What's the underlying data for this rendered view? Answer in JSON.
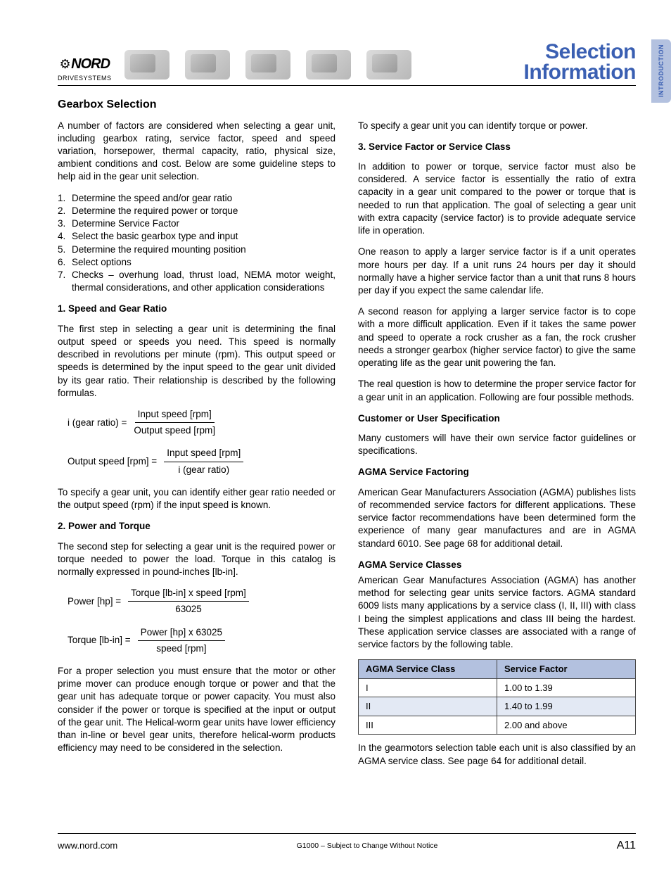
{
  "brand": {
    "name": "NORD",
    "sub": "DRIVESYSTEMS"
  },
  "title": {
    "line1": "Selection",
    "line2": "Information"
  },
  "sideTab": "INTRODUCTION",
  "section": "Gearbox Selection",
  "intro": "A number of factors are considered when selecting a gear unit, including gearbox rating, service factor, speed and speed variation, horsepower, thermal capacity, ratio, physical size, ambient conditions and cost.  Below are some guideline steps to help aid in the gear unit selection.",
  "steps": [
    "Determine the speed and/or gear ratio",
    "Determine the required power or torque",
    "Determine Service Factor",
    "Select the basic gearbox type and input",
    "Determine the required mounting position",
    "Select options",
    "Checks – overhung load, thrust load, NEMA motor weight, thermal considerations, and other application considerations"
  ],
  "h_speed": "1. Speed and Gear Ratio",
  "p_speed": "The first step in selecting a gear unit is determining the final output speed or speeds you need.  This speed is normally described in revolutions per minute (rpm).  This output speed or speeds is determined by the input speed to the gear unit divided by its gear ratio.  Their relationship is described by the following formulas.",
  "f1": {
    "lhs": "i (gear ratio)  =",
    "top": "Input speed [rpm]",
    "bot": "Output speed [rpm]"
  },
  "f2": {
    "lhs": "Output speed [rpm]  =",
    "top": "Input speed [rpm]",
    "bot": "i (gear ratio)"
  },
  "p_speed2": "To specify a gear unit, you can identify either gear ratio needed or the output speed (rpm) if the input speed is known.",
  "h_power": "2. Power and Torque",
  "p_power": "The second step for selecting a gear unit is the required power or torque needed to power the load.  Torque in this catalog is normally expressed in pound-inches [lb-in].",
  "f3": {
    "lhs": "Power [hp]  =",
    "top": "Torque [lb-in] x speed [rpm]",
    "bot": "63025"
  },
  "f4": {
    "lhs": "Torque [lb-in]  =",
    "top": "Power [hp] x 63025",
    "bot": "speed [rpm]"
  },
  "p_power2": "For a proper selection you must ensure that the motor or other prime mover can produce enough torque or power and that the gear unit has adequate torque or power capacity.  You must also consider if the power or torque is specified at the input or output of the gear unit.  The Helical-worm gear units have lower efficiency than in-line or bevel gear units, therefore helical-worm products efficiency may need to be considered in the selection.",
  "p_right1": "To specify a gear unit you can identify torque or power.",
  "h_sf": "3. Service Factor or Service Class",
  "p_sf1": "In addition to power or torque, service factor must also be considered. A service factor is essentially the ratio of extra capacity in a gear unit compared to the power or torque that is needed to run that application.  The goal of selecting a gear unit with extra capacity (service factor) is to provide adequate service life in operation.",
  "p_sf2": "One reason to apply a larger service factor is if a unit operates more hours per day.  If a unit runs 24 hours per day it should normally have a higher service factor than a unit that runs 8 hours per day if you expect the same calendar life.",
  "p_sf3": "A second reason for applying a larger service factor is to cope with a more difficult application.  Even if it takes the same power and speed to operate a rock crusher as a fan, the rock crusher needs a stronger gearbox (higher service factor) to give the same operating life as the gear unit powering the fan.",
  "p_sf4": "The real question is how to determine the proper service factor for a gear unit in an application.  Following are four possible methods.",
  "h_cust": "Customer or User Specification",
  "p_cust": "Many customers will have their own service factor guidelines or specifications.",
  "h_agmaf": "AGMA Service Factoring",
  "p_agmaf": "American Gear Manufacturers Association (AGMA) publishes lists of recommended service factors for different applications.  These service factor recommendations have been determined form the experience of many gear manufactures and are in AGMA standard 6010.  See page 68 for additional detail.",
  "h_agmac": "AGMA Service Classes",
  "p_agmac": "American Gear Manufactures Association (AGMA) has another method for selecting gear units service factors.  AGMA standard 6009 lists many applications by a service class (I, II, III) with class I being the simplest applications and class III being the hardest.  These application service classes are associated with a range of service factors by the following table.",
  "table": {
    "th1": "AGMA Service Class",
    "th2": "Service Factor",
    "rows": [
      {
        "c1": "I",
        "c2": "1.00 to 1.39"
      },
      {
        "c1": "II",
        "c2": "1.40 to 1.99"
      },
      {
        "c1": "III",
        "c2": "2.00 and above"
      }
    ]
  },
  "p_after": "In the gearmotors selection table each unit is also classified by an AGMA service class.  See page 64 for additional detail.",
  "footer": {
    "url": "www.nord.com",
    "mid": "G1000 – Subject to Change Without Notice",
    "page": "A11"
  }
}
